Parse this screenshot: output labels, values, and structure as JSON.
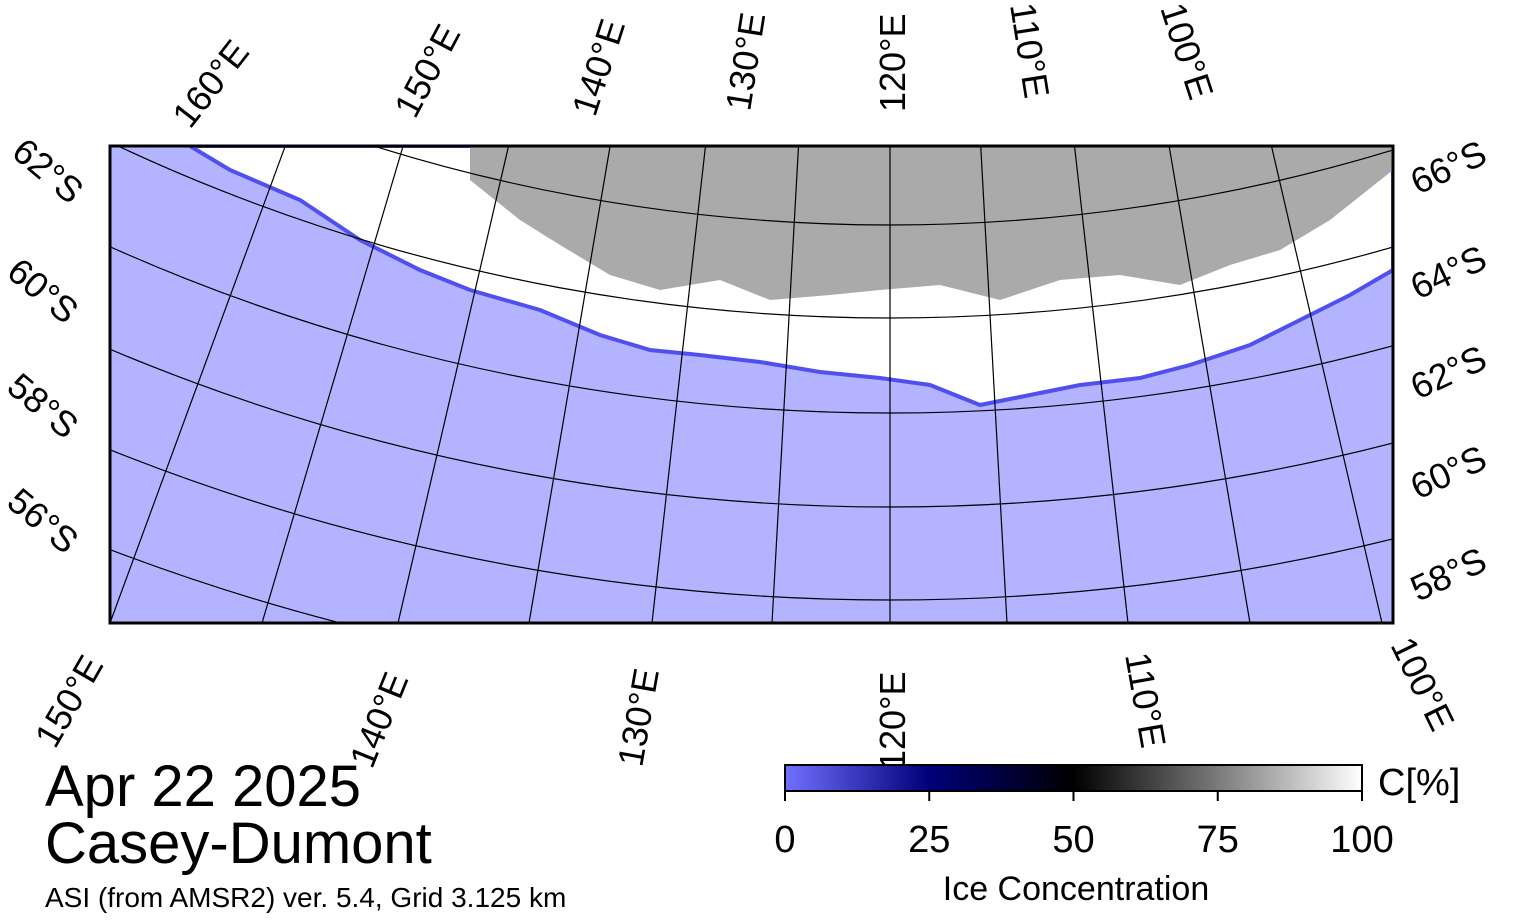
{
  "map": {
    "top_labels": [
      "160°E",
      "150°E",
      "140°E",
      "130°E",
      "120°E",
      "110°E",
      "100°E"
    ],
    "bottom_labels": [
      "150°E",
      "140°E",
      "130°E",
      "120°E",
      "110°E",
      "100°E"
    ],
    "left_labels": [
      "62°S",
      "60°S",
      "58°S",
      "56°S"
    ],
    "right_labels": [
      "66°S",
      "64°S",
      "62°S",
      "60°S",
      "58°S"
    ]
  },
  "date": "Apr 22 2025",
  "region": "Casey-Dumont",
  "subtitle": "ASI (from AMSR2) ver. 5.4,  Grid 3.125 km",
  "colorbar": {
    "label": "Ice Concentration",
    "unit": "C[%]",
    "lim": [
      0,
      100
    ],
    "ticks": [
      0,
      25,
      50,
      75,
      100
    ]
  }
}
